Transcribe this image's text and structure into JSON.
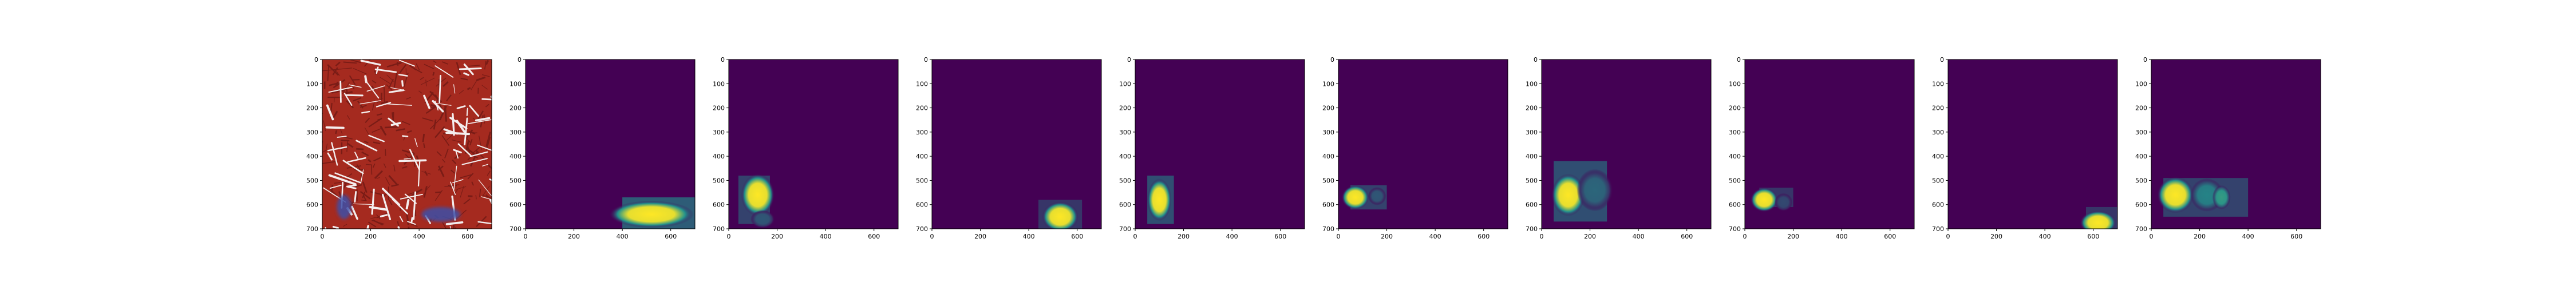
{
  "figure": {
    "background": "#ffffff"
  },
  "chart_data": {
    "type": "heatmap",
    "layout": "1 row x 10 image panels",
    "image_extent": [
      0,
      700
    ],
    "x_ticks": [
      0,
      200,
      400,
      600
    ],
    "y_ticks": [
      0,
      100,
      200,
      300,
      400,
      500,
      600,
      700
    ],
    "y_axis_inverted": true,
    "colormap": "viridis",
    "colors": {
      "heatmap_background": "#440154",
      "heatmap_mid": "#21918c",
      "heatmap_high": "#fde725",
      "tissue_dark": "#7a1c16",
      "tissue_red": "#a52a1f",
      "tissue_white": "#f4eeee",
      "stain_blue": "#3e4fa8"
    },
    "panels": [
      {
        "kind": "tissue_image",
        "description_hidden": true,
        "blue_regions": [
          [
            90,
            610,
            30,
            50
          ],
          [
            490,
            640,
            80,
            30
          ]
        ]
      },
      {
        "kind": "heatmap",
        "rects": [
          [
            400,
            570,
            300,
            130,
            0.35
          ]
        ],
        "blobs": [
          [
            520,
            640,
            140,
            45,
            1.0
          ]
        ]
      },
      {
        "kind": "heatmap",
        "rects": [
          [
            40,
            480,
            130,
            200,
            0.25
          ]
        ],
        "blobs": [
          [
            120,
            560,
            55,
            70,
            1.0
          ],
          [
            140,
            660,
            40,
            30,
            0.3
          ]
        ]
      },
      {
        "kind": "heatmap",
        "rects": [
          [
            440,
            580,
            180,
            120,
            0.2
          ]
        ],
        "blobs": [
          [
            530,
            650,
            60,
            50,
            1.0
          ]
        ]
      },
      {
        "kind": "heatmap",
        "rects": [
          [
            50,
            480,
            110,
            200,
            0.3
          ]
        ],
        "blobs": [
          [
            100,
            580,
            40,
            70,
            1.0
          ]
        ]
      },
      {
        "kind": "heatmap",
        "rects": [
          [
            50,
            520,
            150,
            100,
            0.25
          ]
        ],
        "blobs": [
          [
            70,
            570,
            45,
            40,
            1.0
          ],
          [
            160,
            565,
            30,
            30,
            0.3
          ]
        ]
      },
      {
        "kind": "heatmap",
        "rects": [
          [
            50,
            420,
            220,
            250,
            0.3
          ]
        ],
        "blobs": [
          [
            110,
            560,
            55,
            70,
            1.0
          ],
          [
            220,
            540,
            60,
            70,
            0.35
          ]
        ]
      },
      {
        "kind": "heatmap",
        "rects": [
          [
            60,
            530,
            140,
            80,
            0.2
          ]
        ],
        "blobs": [
          [
            80,
            580,
            45,
            40,
            1.0
          ],
          [
            160,
            590,
            30,
            30,
            0.25
          ]
        ]
      },
      {
        "kind": "heatmap",
        "rects": [
          [
            570,
            610,
            130,
            90,
            0.2
          ]
        ],
        "blobs": [
          [
            620,
            675,
            60,
            40,
            1.0
          ]
        ]
      },
      {
        "kind": "heatmap",
        "rects": [
          [
            50,
            490,
            350,
            160,
            0.25
          ]
        ],
        "blobs": [
          [
            100,
            560,
            60,
            60,
            1.0
          ],
          [
            230,
            560,
            55,
            55,
            0.45
          ],
          [
            290,
            570,
            30,
            40,
            0.55
          ]
        ]
      }
    ]
  }
}
